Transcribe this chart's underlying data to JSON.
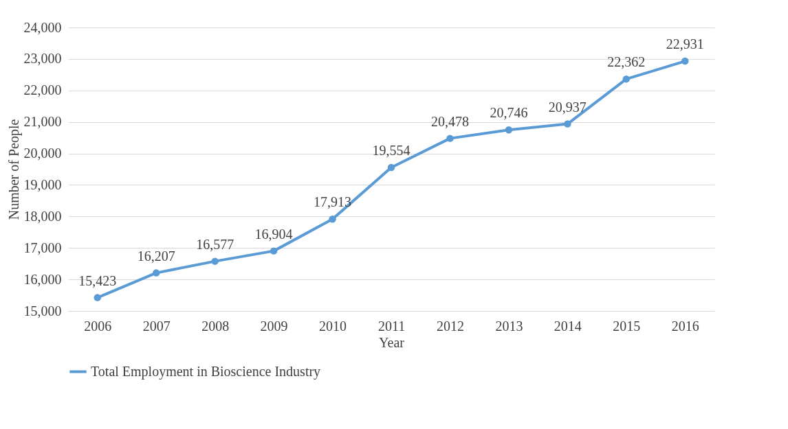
{
  "chart_data": {
    "type": "line",
    "xlabel": "Year",
    "ylabel": "Number of People",
    "categories": [
      "2006",
      "2007",
      "2008",
      "2009",
      "2010",
      "2011",
      "2012",
      "2013",
      "2014",
      "2015",
      "2016"
    ],
    "series": [
      {
        "name": "Total Employment in Bioscience Industry",
        "color": "#5b9bd5",
        "values": [
          15423,
          16207,
          16577,
          16904,
          17913,
          19554,
          20478,
          20746,
          20937,
          22362,
          22931
        ],
        "value_labels": [
          "15,423",
          "16,207",
          "16,577",
          "16,904",
          "17,913",
          "19,554",
          "20,478",
          "20,746",
          "20,937",
          "22,362",
          "22,931"
        ]
      }
    ],
    "ylim": [
      15000,
      24000
    ],
    "yticks": [
      {
        "value": 15000,
        "label": "15,000"
      },
      {
        "value": 16000,
        "label": "16,000"
      },
      {
        "value": 17000,
        "label": "17,000"
      },
      {
        "value": 18000,
        "label": "18,000"
      },
      {
        "value": 19000,
        "label": "19,000"
      },
      {
        "value": 20000,
        "label": "20,000"
      },
      {
        "value": 21000,
        "label": "21,000"
      },
      {
        "value": 22000,
        "label": "22,000"
      },
      {
        "value": 23000,
        "label": "23,000"
      },
      {
        "value": 24000,
        "label": "24,000"
      }
    ],
    "grid": "y",
    "legend": "bottom",
    "marker": "circle",
    "line_style": "solid"
  }
}
